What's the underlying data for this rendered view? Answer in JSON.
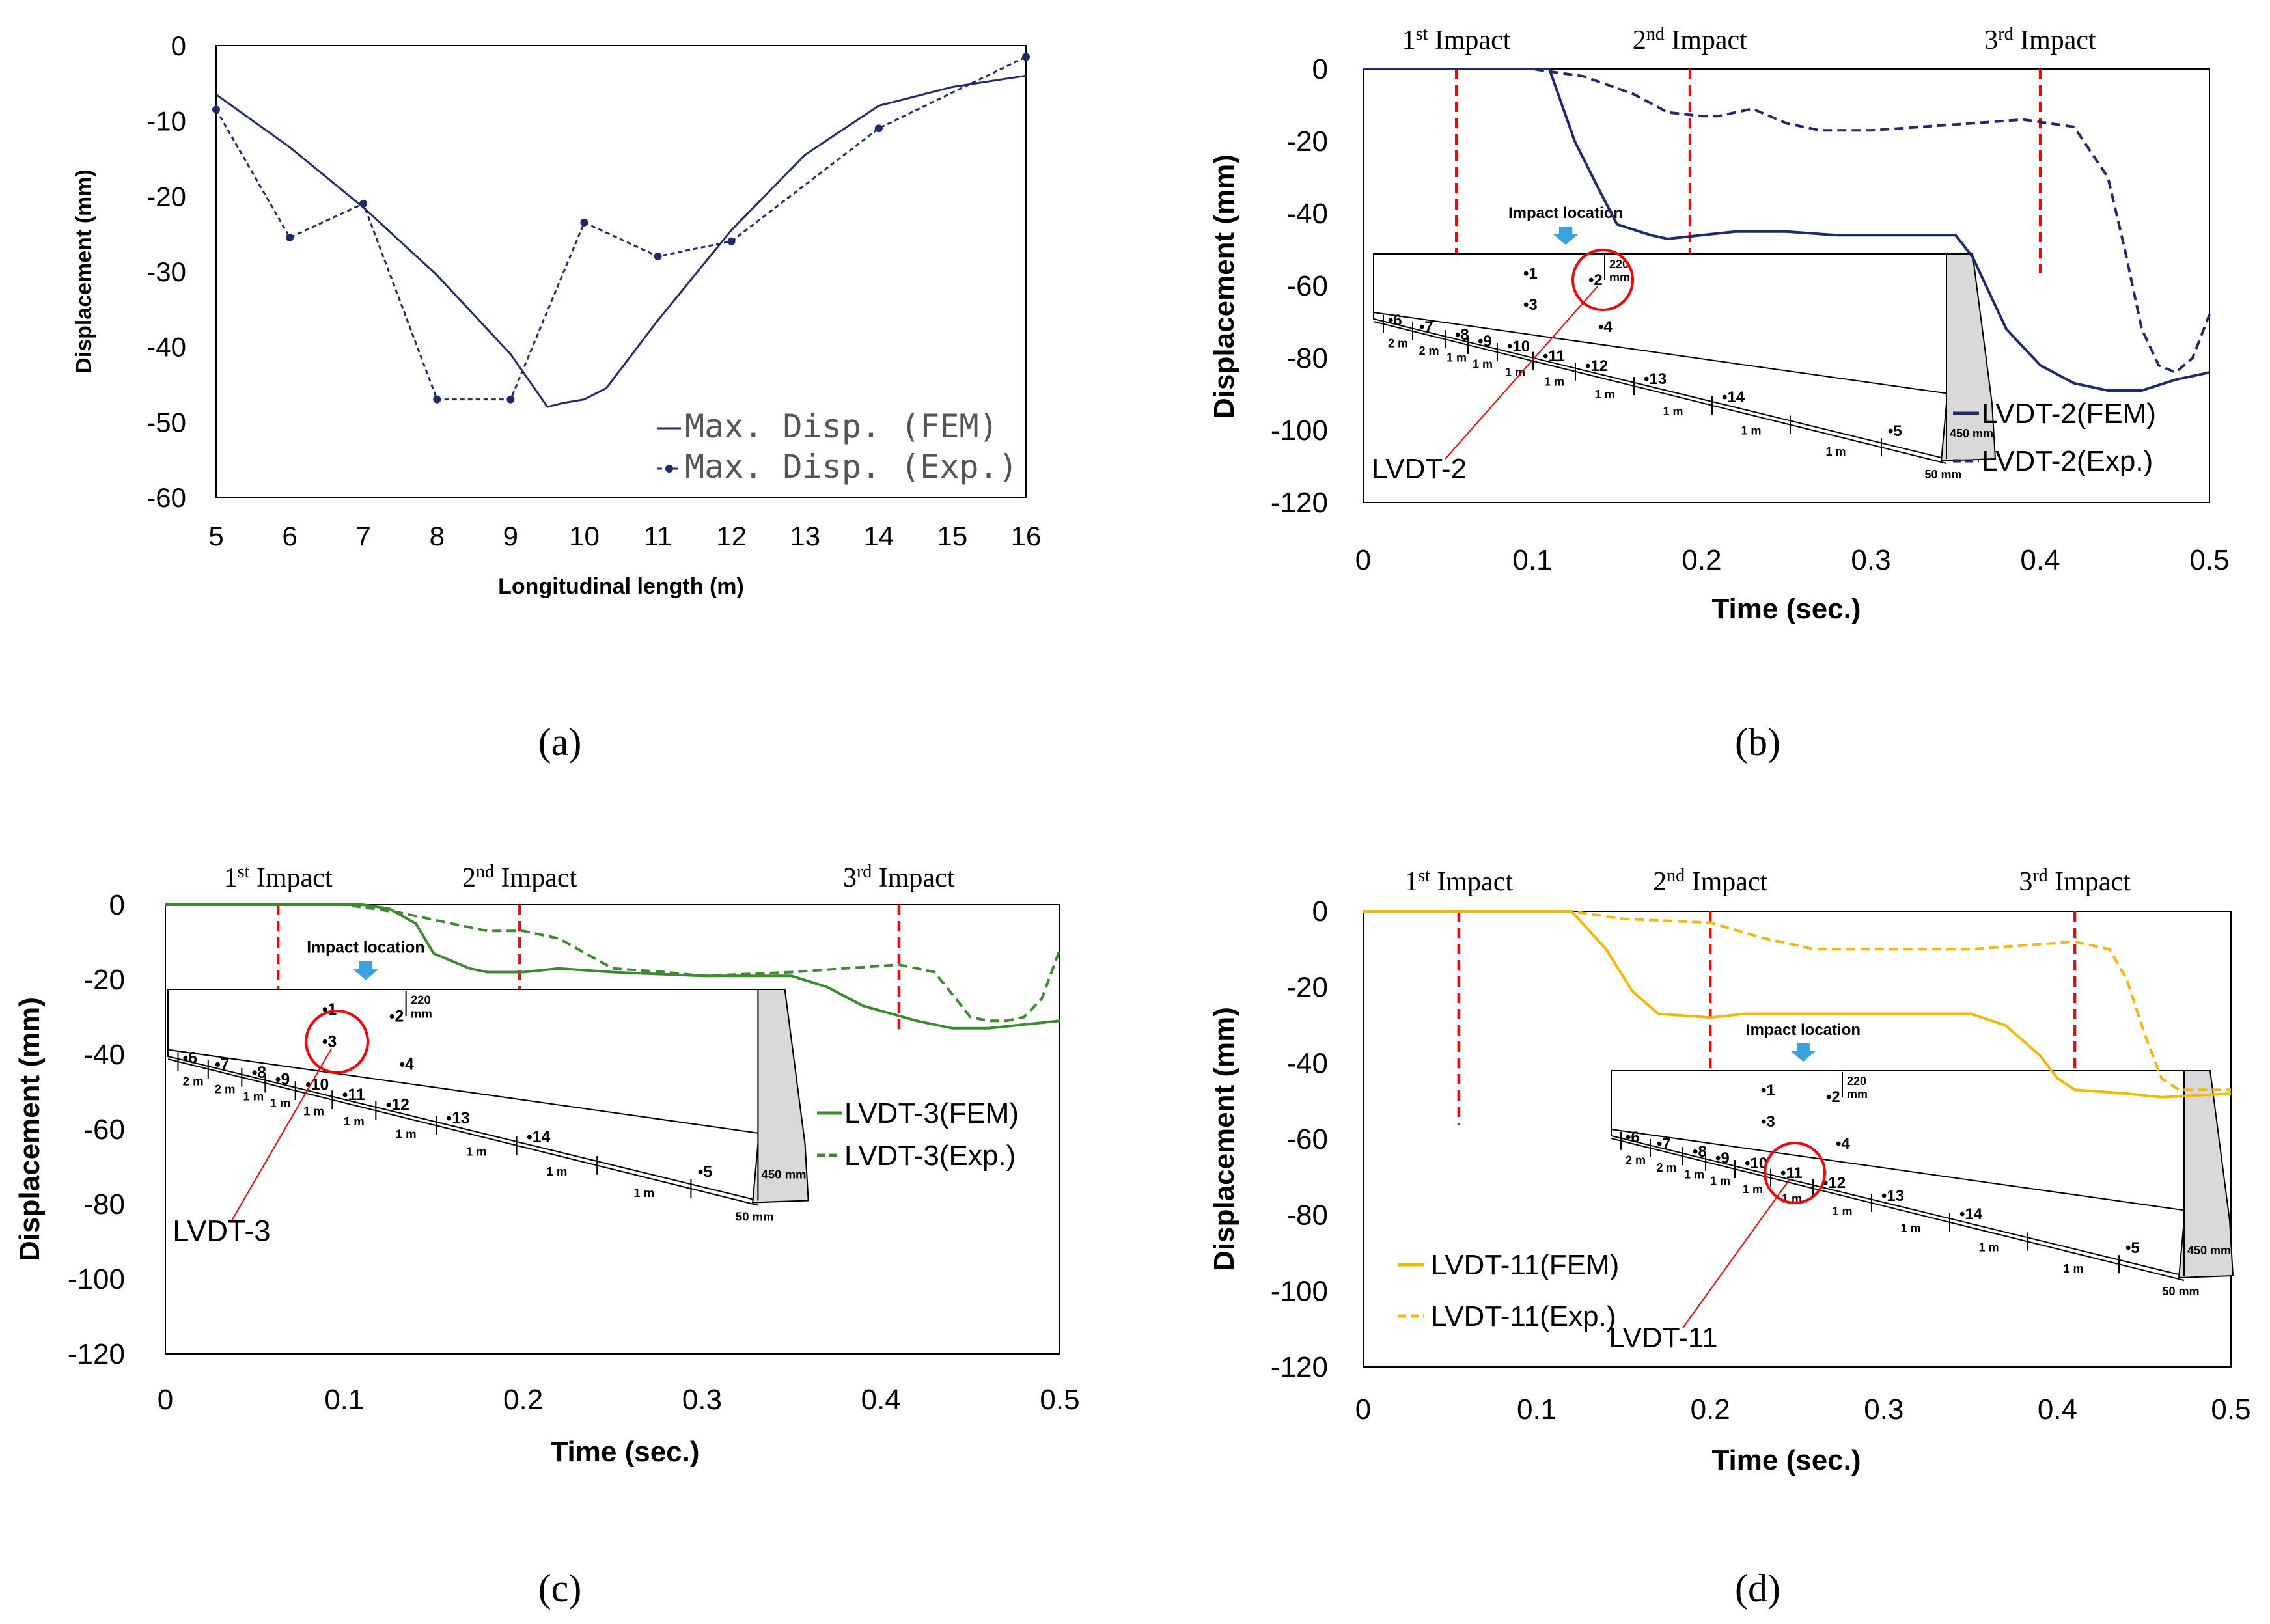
{
  "subfigure_labels": [
    "(a)",
    "(b)",
    "(c)",
    "(d)"
  ],
  "impact_labels": {
    "first": {
      "pre": "1",
      "sup": "st",
      "post": " Impact"
    },
    "second": {
      "pre": "2",
      "sup": "nd",
      "post": " Impact"
    },
    "third": {
      "pre": "3",
      "sup": "rd",
      "post": " Impact"
    }
  },
  "diagram": {
    "impact_location": "Impact location",
    "dim_220": "220",
    "dim_mm": "mm",
    "dim_450": "450 mm",
    "dim_50": "50 mm",
    "sensor_top": [
      "1",
      "2"
    ],
    "sensor_front": [
      "3",
      "4",
      "5",
      "6",
      "7",
      "8",
      "9",
      "10",
      "11",
      "12",
      "13",
      "14"
    ],
    "spacing_labels": [
      "2 m",
      "2 m",
      "1 m",
      "1 m",
      "1 m",
      "1 m",
      "1 m",
      "1 m",
      "1 m",
      "1 m"
    ]
  },
  "chart_data": [
    {
      "id": "a",
      "type": "line",
      "xlabel": "Longitudinal length (m)",
      "ylabel": "Displacement (mm)",
      "xlim": [
        5,
        16
      ],
      "ylim": [
        -60,
        0
      ],
      "xticks": [
        "5",
        "6",
        "7",
        "8",
        "9",
        "10",
        "11",
        "12",
        "13",
        "14",
        "15",
        "16"
      ],
      "yticks": [
        "0",
        "-10",
        "-20",
        "-30",
        "-40",
        "-50",
        "-60"
      ],
      "legend_position": "bottom-right",
      "series": [
        {
          "name": "Max. Disp. (FEM)",
          "color": "#1f2a6b",
          "dash": false,
          "markers": false,
          "x": [
            5,
            6,
            7,
            8,
            9,
            9.5,
            9.7,
            10,
            10.3,
            11,
            12,
            13,
            14,
            15,
            16
          ],
          "y": [
            -6.5,
            -13.5,
            -21.5,
            -30.5,
            -41,
            -48,
            -47.5,
            -47,
            -45.5,
            -36.5,
            -24.5,
            -14.5,
            -8,
            -5.5,
            -4
          ]
        },
        {
          "name": "Max. Disp. (Exp.)",
          "color": "#1f2a6b",
          "dash": true,
          "markers": true,
          "x": [
            5,
            6,
            7,
            8,
            9,
            10,
            11,
            12,
            14,
            16
          ],
          "y": [
            -8.5,
            -25.5,
            -21,
            -47,
            -47,
            -23.5,
            -28,
            -26,
            -11,
            -1.5
          ]
        }
      ]
    },
    {
      "id": "b",
      "type": "line",
      "xlabel": "Time (sec.)",
      "ylabel": "Displacement (mm)",
      "xlim": [
        0,
        0.5
      ],
      "ylim": [
        -120,
        0
      ],
      "xticks": [
        "0",
        "0.1",
        "0.2",
        "0.3",
        "0.4",
        "0.5"
      ],
      "yticks": [
        "0",
        "-20",
        "-40",
        "-60",
        "-80",
        "-100",
        "-120"
      ],
      "impacts": [
        0.055,
        0.193,
        0.4
      ],
      "sensor_label": "LVDT-2",
      "highlighted_sensor": "2",
      "legend_position": "bottom-right",
      "series": [
        {
          "name": "LVDT-2(FEM)",
          "color": "#1f2a6b",
          "dash": false,
          "x": [
            0,
            0.11,
            0.125,
            0.14,
            0.15,
            0.17,
            0.18,
            0.2,
            0.22,
            0.25,
            0.28,
            0.3,
            0.33,
            0.35,
            0.36,
            0.38,
            0.4,
            0.42,
            0.44,
            0.46,
            0.48,
            0.5
          ],
          "y": [
            0,
            0,
            -20,
            -34,
            -43,
            -46,
            -47,
            -46,
            -45,
            -45,
            -46,
            -46,
            -46,
            -46,
            -52,
            -72,
            -82,
            -87,
            -89,
            -89,
            -86,
            -84
          ]
        },
        {
          "name": "LVDT-2(Exp.)",
          "color": "#1f2a6b",
          "dash": true,
          "x": [
            0,
            0.1,
            0.13,
            0.16,
            0.18,
            0.2,
            0.21,
            0.23,
            0.25,
            0.27,
            0.3,
            0.33,
            0.36,
            0.39,
            0.42,
            0.44,
            0.45,
            0.46,
            0.47,
            0.48,
            0.49,
            0.5
          ],
          "y": [
            0,
            0,
            -2,
            -7,
            -12,
            -13,
            -13,
            -11,
            -15,
            -17,
            -17,
            -16,
            -15,
            -14,
            -16,
            -30,
            -50,
            -72,
            -82,
            -84,
            -80,
            -68
          ]
        }
      ]
    },
    {
      "id": "c",
      "type": "line",
      "xlabel": "Time (sec.)",
      "ylabel": "Displacement (mm)",
      "xlim": [
        0,
        0.5
      ],
      "ylim": [
        -120,
        0
      ],
      "xticks": [
        "0",
        "0.1",
        "0.2",
        "0.3",
        "0.4",
        "0.5"
      ],
      "yticks": [
        "0",
        "-20",
        "-40",
        "-60",
        "-80",
        "-100",
        "-120"
      ],
      "impacts": [
        0.063,
        0.198,
        0.41
      ],
      "sensor_label": "LVDT-3",
      "highlighted_sensor": "3",
      "legend_position": "right",
      "series": [
        {
          "name": "LVDT-3(FEM)",
          "color": "#3c8a2e",
          "dash": false,
          "x": [
            0,
            0.11,
            0.125,
            0.14,
            0.15,
            0.17,
            0.18,
            0.2,
            0.22,
            0.25,
            0.3,
            0.35,
            0.37,
            0.39,
            0.42,
            0.44,
            0.46,
            0.48,
            0.5
          ],
          "y": [
            0,
            0,
            -1,
            -5,
            -13,
            -17,
            -18,
            -18,
            -17,
            -18,
            -19,
            -19,
            -22,
            -27,
            -31,
            -33,
            -33,
            -32,
            -31
          ]
        },
        {
          "name": "LVDT-3(Exp.)",
          "color": "#3c8a2e",
          "dash": true,
          "x": [
            0,
            0.1,
            0.13,
            0.16,
            0.18,
            0.2,
            0.22,
            0.25,
            0.28,
            0.3,
            0.35,
            0.38,
            0.41,
            0.43,
            0.44,
            0.45,
            0.46,
            0.47,
            0.48,
            0.49,
            0.5
          ],
          "y": [
            0,
            0,
            -2,
            -5,
            -7,
            -7,
            -9,
            -17,
            -18,
            -19,
            -18,
            -17,
            -16,
            -18,
            -24,
            -30,
            -31,
            -31,
            -30,
            -25,
            -12
          ]
        }
      ]
    },
    {
      "id": "d",
      "type": "line",
      "xlabel": "Time (sec.)",
      "ylabel": "Displacement (mm)",
      "xlim": [
        0,
        0.5
      ],
      "ylim": [
        -120,
        0
      ],
      "xticks": [
        "0",
        "0.1",
        "0.2",
        "0.3",
        "0.4",
        "0.5"
      ],
      "yticks": [
        "0",
        "-20",
        "-40",
        "-60",
        "-80",
        "-100",
        "-120"
      ],
      "impacts": [
        0.055,
        0.2,
        0.41
      ],
      "sensor_label": "LVDT-11",
      "highlighted_sensor": "11",
      "legend_position": "bottom-left",
      "series": [
        {
          "name": "LVDT-11(FEM)",
          "color": "#f5b800",
          "dash": false,
          "x": [
            0,
            0.12,
            0.14,
            0.155,
            0.17,
            0.2,
            0.22,
            0.25,
            0.3,
            0.35,
            0.37,
            0.39,
            0.4,
            0.41,
            0.44,
            0.46,
            0.5
          ],
          "y": [
            0,
            0,
            -10,
            -21,
            -27,
            -28,
            -27,
            -27,
            -27,
            -27,
            -30,
            -38,
            -44,
            -47,
            -48,
            -49,
            -48
          ]
        },
        {
          "name": "LVDT-11(Exp.)",
          "color": "#f5b800",
          "dash": true,
          "x": [
            0,
            0.12,
            0.15,
            0.2,
            0.23,
            0.26,
            0.3,
            0.35,
            0.38,
            0.41,
            0.43,
            0.44,
            0.45,
            0.46,
            0.47,
            0.5
          ],
          "y": [
            0,
            0,
            -2,
            -3,
            -7,
            -10,
            -10,
            -10,
            -9,
            -8,
            -10,
            -18,
            -32,
            -44,
            -47,
            -47
          ]
        }
      ]
    }
  ]
}
